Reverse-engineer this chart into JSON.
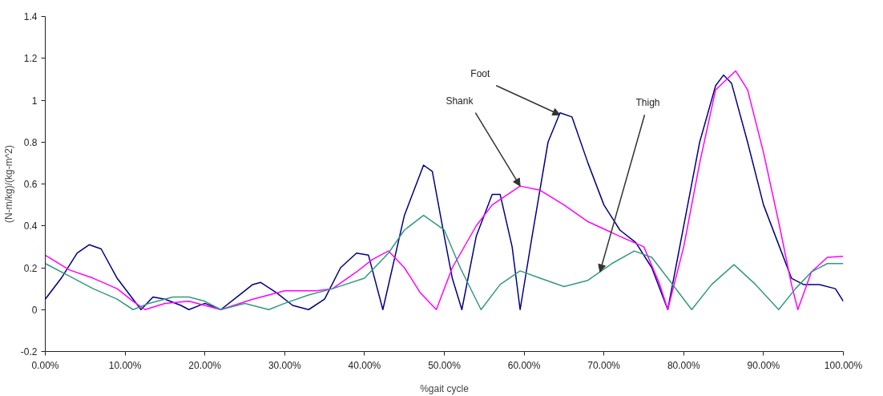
{
  "chart_data": {
    "type": "line",
    "xlabel": "%gait cycle",
    "ylabel": "(N-m/kg)/(kg-m^2)",
    "x": [
      0,
      2,
      4,
      5.5,
      7,
      9,
      11,
      12,
      13.5,
      15,
      17,
      18,
      20,
      22,
      24,
      26,
      27,
      29,
      31,
      33,
      35,
      37,
      39,
      40.5,
      42.3,
      45,
      47.4,
      48.5,
      50,
      51,
      52.2,
      54,
      56,
      57,
      58.5,
      59.5,
      61,
      63,
      64.5,
      66,
      68,
      70,
      72,
      74,
      76,
      77.5,
      78,
      80,
      82,
      84,
      85,
      86,
      88,
      90,
      92,
      93.5,
      95,
      97,
      99,
      100
    ],
    "series": [
      {
        "color": "#000080",
        "values": [
          0.05,
          0.15,
          0.27,
          0.31,
          0.29,
          0.15,
          0.05,
          0.0,
          0.06,
          0.05,
          0.02,
          0.0,
          0.03,
          0.0,
          0.06,
          0.12,
          0.13,
          0.08,
          0.02,
          0.0,
          0.05,
          0.2,
          0.27,
          0.26,
          0.0,
          0.45,
          0.69,
          0.66,
          0.35,
          0.15,
          0.0,
          0.35,
          0.55,
          0.55,
          0.3,
          0.0,
          0.35,
          0.8,
          0.94,
          0.92,
          0.7,
          0.5,
          0.38,
          0.32,
          0.2,
          0.05,
          0.0,
          0.4,
          0.8,
          1.07,
          1.12,
          1.08,
          0.8,
          0.5,
          0.3,
          0.15,
          0.12,
          0.12,
          0.1,
          0.04
        ]
      },
      {
        "color": "#ff00ff",
        "x": [
          0,
          3,
          6,
          9,
          11,
          12.5,
          15,
          18,
          20,
          22,
          26,
          30,
          34,
          36,
          39,
          41,
          43,
          45,
          47,
          49,
          51,
          54,
          56,
          59.5,
          62,
          65,
          68,
          72,
          75,
          77,
          78,
          80,
          82,
          84,
          86.5,
          88,
          90,
          92,
          93.5,
          94.3,
          96,
          98,
          100
        ],
        "values": [
          0.26,
          0.19,
          0.15,
          0.1,
          0.04,
          0.0,
          0.03,
          0.04,
          0.02,
          0.0,
          0.05,
          0.09,
          0.09,
          0.1,
          0.18,
          0.24,
          0.28,
          0.2,
          0.08,
          0.0,
          0.2,
          0.4,
          0.5,
          0.59,
          0.57,
          0.5,
          0.42,
          0.35,
          0.3,
          0.12,
          0.0,
          0.3,
          0.7,
          1.05,
          1.14,
          1.05,
          0.75,
          0.4,
          0.12,
          0.0,
          0.18,
          0.25,
          0.255
        ]
      },
      {
        "color": "#339980",
        "x": [
          0,
          3,
          6,
          9,
          11,
          13,
          16,
          18,
          20,
          22,
          25,
          28,
          30,
          33,
          36,
          40,
          43,
          45,
          47.4,
          50,
          52,
          54.6,
          57,
          59.5,
          62,
          65,
          68,
          71,
          73.8,
          76,
          78,
          81,
          83.5,
          86.3,
          89,
          91.9,
          94,
          96,
          98,
          100
        ],
        "values": [
          0.22,
          0.16,
          0.1,
          0.05,
          0.0,
          0.03,
          0.06,
          0.06,
          0.04,
          0.0,
          0.03,
          0.0,
          0.03,
          0.07,
          0.1,
          0.15,
          0.27,
          0.38,
          0.45,
          0.38,
          0.2,
          0.0,
          0.12,
          0.185,
          0.15,
          0.11,
          0.14,
          0.22,
          0.28,
          0.25,
          0.15,
          0.0,
          0.12,
          0.215,
          0.12,
          0.0,
          0.1,
          0.18,
          0.22,
          0.22
        ]
      }
    ],
    "annotations": [
      {
        "text": "Foot",
        "x": 64.5,
        "y": 0.93
      },
      {
        "text": "Shank",
        "x": 59.5,
        "y": 0.59
      },
      {
        "text": "Thigh",
        "x": 69.5,
        "y": 0.18
      }
    ],
    "xlim": [
      0,
      100
    ],
    "ylim": [
      -0.2,
      1.4
    ],
    "xticks": [
      {
        "value": 0,
        "label": "0.00%"
      },
      {
        "value": 10,
        "label": "10.00%"
      },
      {
        "value": 20,
        "label": "20.00%"
      },
      {
        "value": 30,
        "label": "30.00%"
      },
      {
        "value": 40,
        "label": "40.00%"
      },
      {
        "value": 50,
        "label": "50.00%"
      },
      {
        "value": 60,
        "label": "60.00%"
      },
      {
        "value": 70,
        "label": "70.00%"
      },
      {
        "value": 80,
        "label": "80.00%"
      },
      {
        "value": 90,
        "label": "90.00%"
      },
      {
        "value": 100,
        "label": "100.00%"
      }
    ],
    "yticks": [
      -0.2,
      0,
      0.2,
      0.4,
      0.6,
      0.8,
      1,
      1.2,
      1.4
    ],
    "grid": false,
    "marker": "none",
    "line_style": "solid"
  }
}
